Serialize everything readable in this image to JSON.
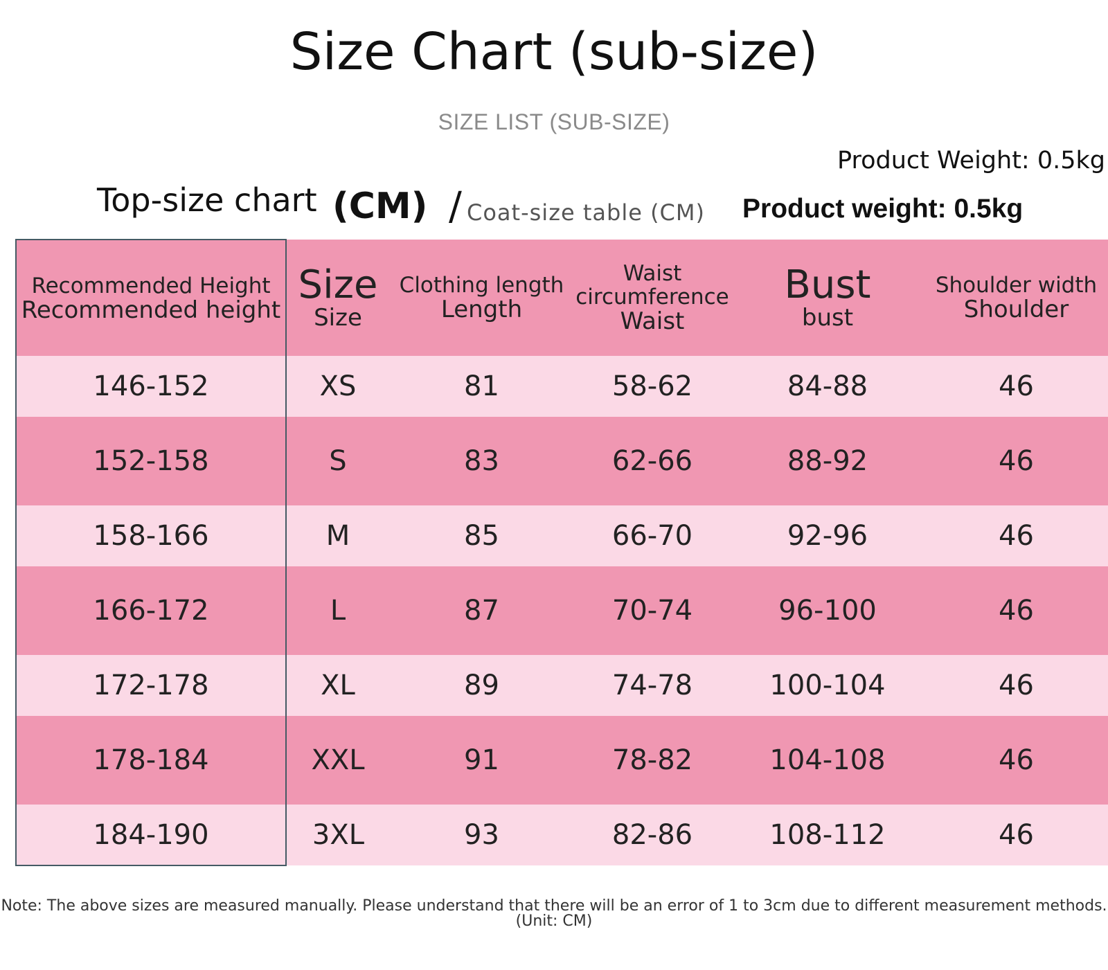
{
  "title": "Size Chart (sub-size)",
  "subtitle": "SIZE LIST (SUB-SIZE)",
  "product_weight_1": "Product Weight: 0.5kg",
  "top_size_label": "Top-size chart",
  "cm_label": "(CM)",
  "slash": "/",
  "coat_size_label": "Coat-size table (CM)",
  "product_weight_2": "Product weight:  0.5kg",
  "table": {
    "headers": [
      {
        "top": "Recommended Height",
        "bottom": "Recommended height"
      },
      {
        "top": "Size",
        "bottom": "Size"
      },
      {
        "top": "Clothing length",
        "bottom": "Length"
      },
      {
        "top": "Waist circumference",
        "bottom": "Waist"
      },
      {
        "top": "Bust",
        "bottom": "bust"
      },
      {
        "top": "Shoulder width",
        "bottom": "Shoulder"
      }
    ],
    "rows": [
      [
        "146-152",
        "XS",
        "81",
        "58-62",
        "84-88",
        "46"
      ],
      [
        "152-158",
        "S",
        "83",
        "62-66",
        "88-92",
        "46"
      ],
      [
        "158-166",
        "M",
        "85",
        "66-70",
        "92-96",
        "46"
      ],
      [
        "166-172",
        "L",
        "87",
        "70-74",
        "96-100",
        "46"
      ],
      [
        "172-178",
        "XL",
        "89",
        "74-78",
        "100-104",
        "46"
      ],
      [
        "178-184",
        "XXL",
        "91",
        "78-82",
        "104-108",
        "46"
      ],
      [
        "184-190",
        "3XL",
        "93",
        "82-86",
        "108-112",
        "46"
      ]
    ]
  },
  "note": "Note: The above sizes are measured manually. Please understand that there will be an error of 1 to 3cm due to different measurement methods. (Unit: CM)",
  "colors": {
    "header_bg": "#f097b2",
    "row_light": "#fbd9e6",
    "row_dark": "#f097b2",
    "border": "#455a64"
  }
}
